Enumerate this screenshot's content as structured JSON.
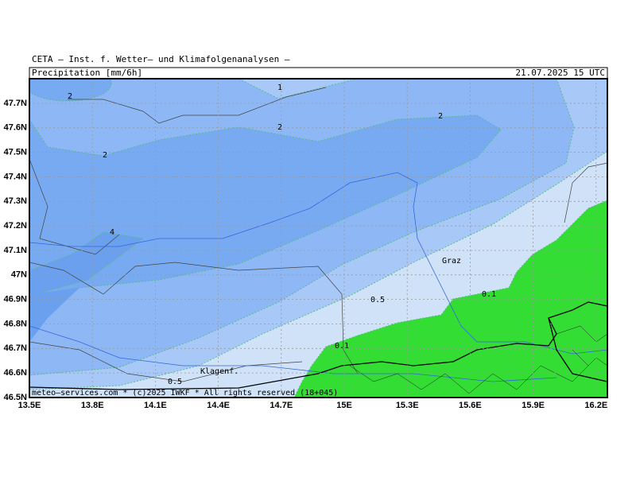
{
  "header": {
    "institute": "CETA — Inst. f. Wetter— und Klimafolgenanalysen —",
    "title": "Precipitation [mm/6h]",
    "valid_time": "21.07.2025 15 UTC"
  },
  "map": {
    "lat_labels": [
      "47.7N",
      "47.6N",
      "47.5N",
      "47.4N",
      "47.3N",
      "47.2N",
      "47.1N",
      "47N",
      "46.9N",
      "46.8N",
      "46.7N",
      "46.6N",
      "46.5N"
    ],
    "lon_labels": [
      "13.5E",
      "13.8E",
      "14.1E",
      "14.4E",
      "14.7E",
      "15E",
      "15.3E",
      "15.6E",
      "15.9E",
      "16.2E"
    ],
    "contour_labels": [
      "1",
      "2",
      "2",
      "2",
      "2",
      "4",
      "0.5",
      "0.5",
      "0.1",
      "0.1"
    ],
    "cities": [
      "Graz",
      "Klagenf."
    ],
    "footer": "meteo—services.com * (c)2025 IWKF * All rights reserved (18+045)"
  }
}
